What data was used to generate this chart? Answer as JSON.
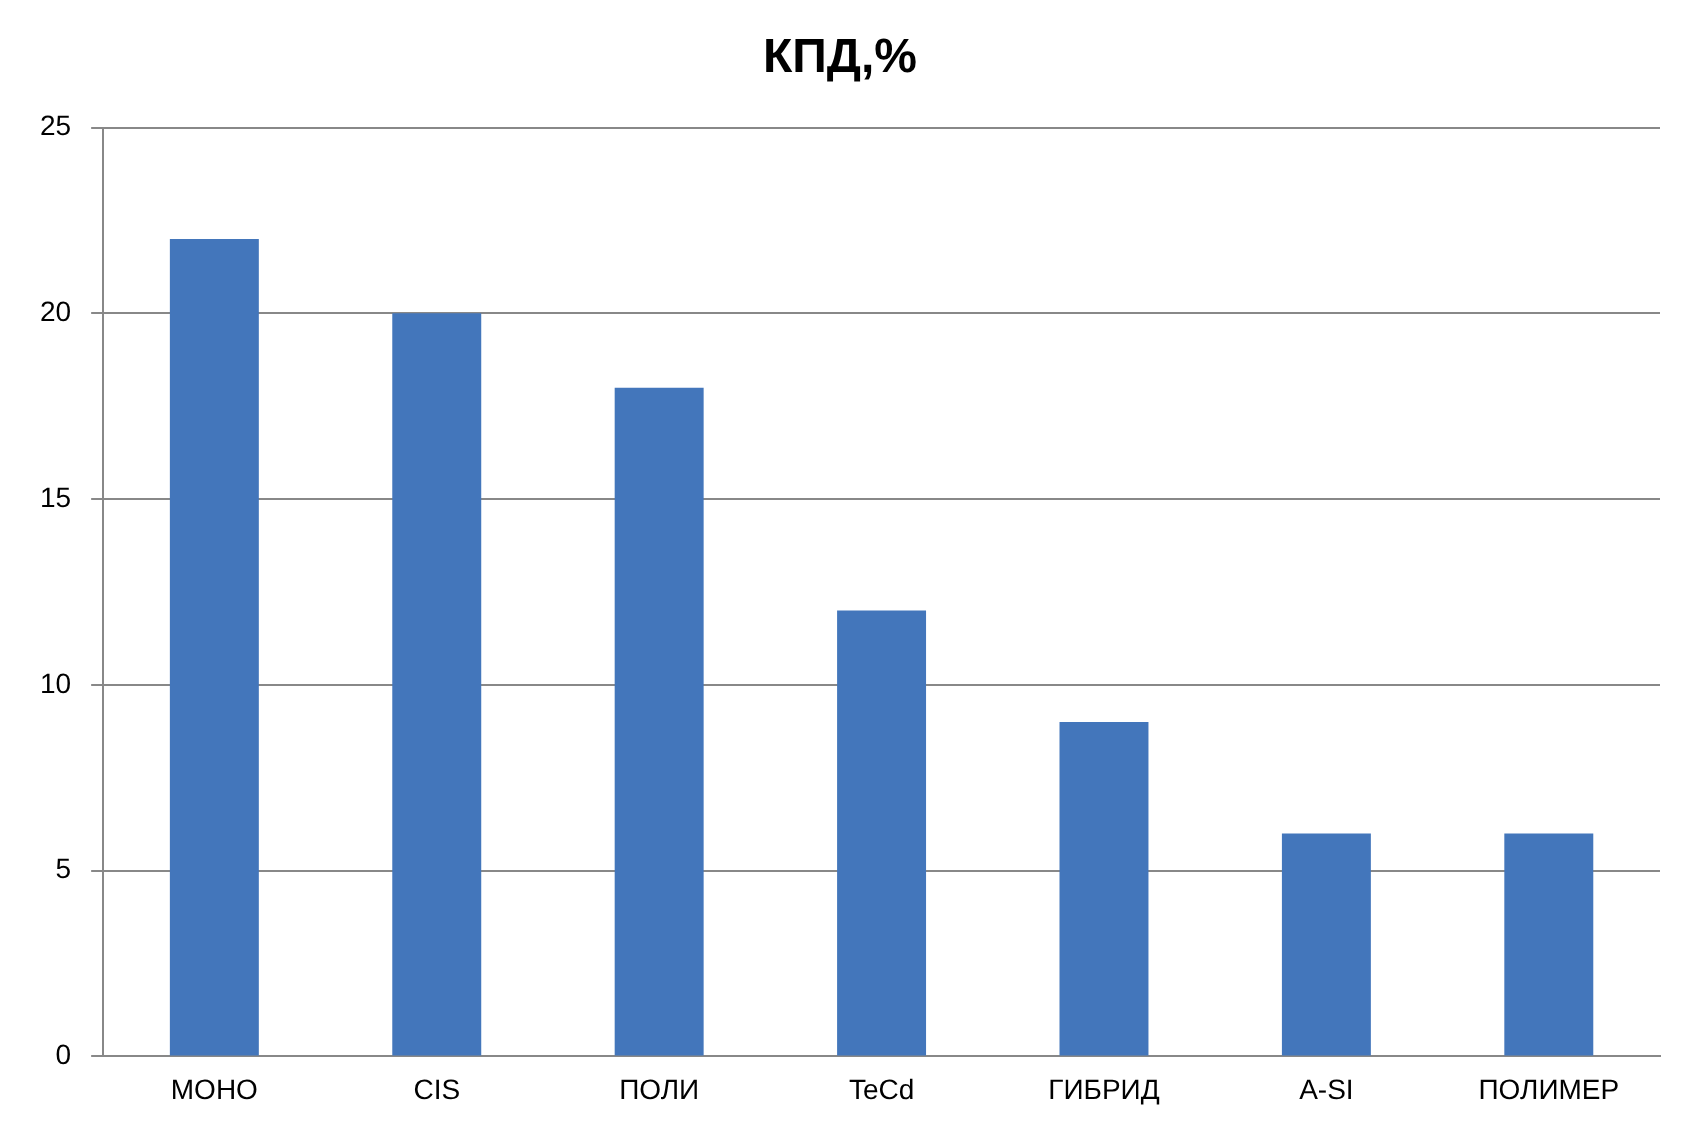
{
  "chart_data": {
    "type": "bar",
    "title": "КПД,%",
    "categories": [
      "МОНО",
      "CIS",
      "ПОЛИ",
      "TeCd",
      "ГИБРИД",
      "A-SI",
      "ПОЛИМЕР"
    ],
    "values": [
      22,
      20,
      18,
      12,
      9,
      6,
      6
    ],
    "color": "#4376bb",
    "ylim": [
      0,
      25
    ],
    "yticks": [
      0,
      5,
      10,
      15,
      20,
      25
    ],
    "grid": "y"
  }
}
